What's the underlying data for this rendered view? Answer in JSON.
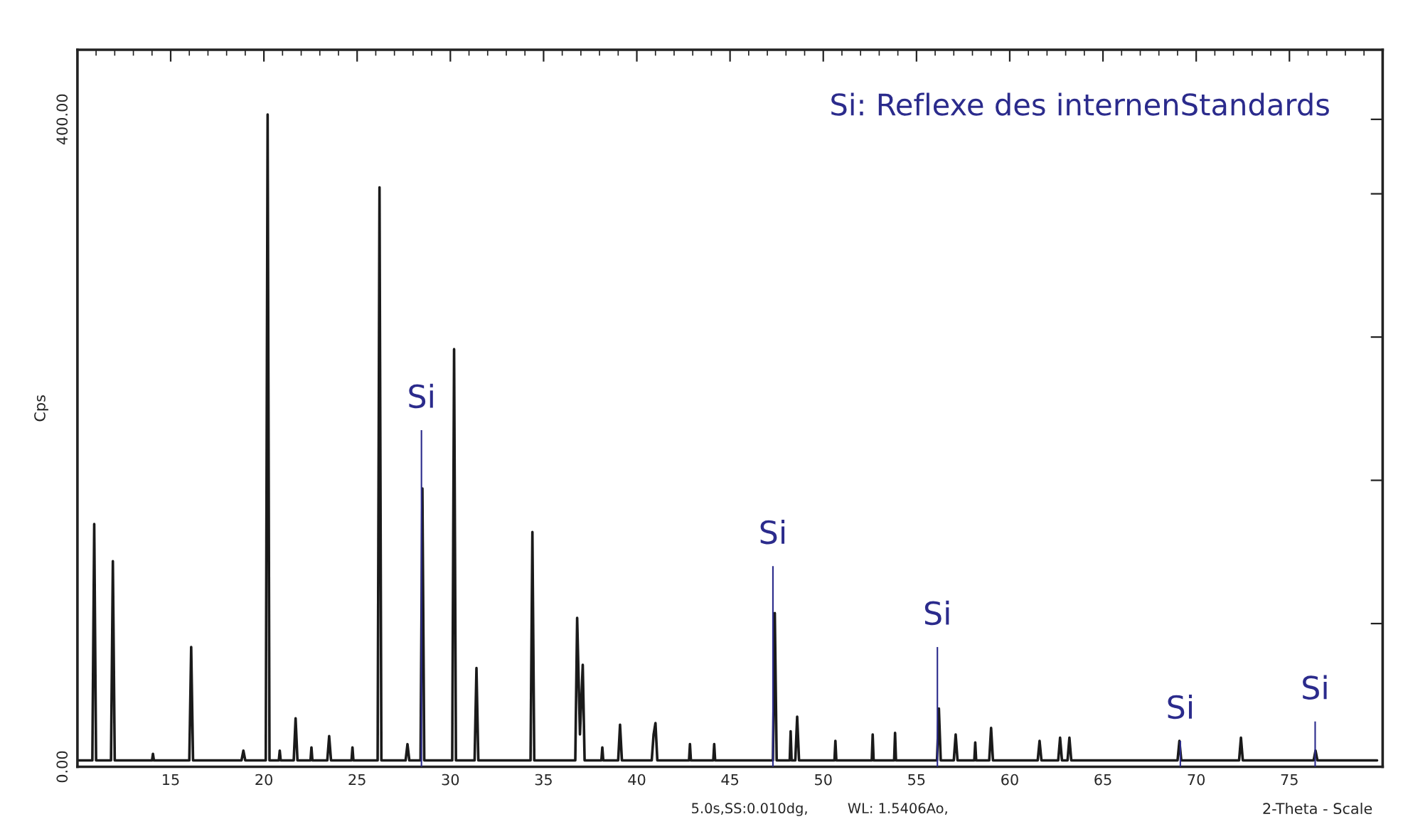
{
  "chart_data": {
    "type": "line",
    "ylabel": "Cps",
    "xlabel": "2-Theta - Scale",
    "annotations": [
      "Si: Reflexe des internenStandards",
      "5.0s,SS:0.010dg,",
      "WL: 1.5406Ao,",
      {
        "text": "Si",
        "x": 28.45,
        "y": 208
      },
      {
        "text": "Si",
        "x": 47.3,
        "y": 124
      },
      {
        "text": "Si",
        "x": 56.12,
        "y": 74
      },
      {
        "text": "Si",
        "x": 69.15,
        "y": 16
      },
      {
        "text": "Si",
        "x": 76.38,
        "y": 28
      }
    ],
    "xlim": [
      10,
      80
    ],
    "ylim": [
      0,
      443
    ],
    "xticks": [
      15,
      20,
      25,
      30,
      35,
      40,
      45,
      50,
      55,
      60,
      65,
      70,
      75
    ],
    "yticks": [
      {
        "value": 0,
        "label": "0.00"
      },
      {
        "value": 88.5,
        "label": null
      },
      {
        "value": 177,
        "label": null
      },
      {
        "value": 265.5,
        "label": null
      },
      {
        "value": 354,
        "label": null
      },
      {
        "value": 400,
        "label": "400.00"
      }
    ],
    "grid": false,
    "legend": false,
    "series": [
      {
        "color": "#1a1a1a",
        "x": [
          10.0,
          10.8,
          10.9,
          11.0,
          11.8,
          11.9,
          12.0,
          14.0,
          14.05,
          14.1,
          16.0,
          16.1,
          16.2,
          18.8,
          18.9,
          19.0,
          20.1,
          20.2,
          20.3,
          20.8,
          20.85,
          20.9,
          21.6,
          21.7,
          21.8,
          22.5,
          22.55,
          22.6,
          23.4,
          23.5,
          23.6,
          24.7,
          24.75,
          24.8,
          26.1,
          26.2,
          26.3,
          27.6,
          27.7,
          27.8,
          28.4,
          28.5,
          28.6,
          30.1,
          30.2,
          30.3,
          31.3,
          31.4,
          31.5,
          34.3,
          34.4,
          34.5,
          36.7,
          36.8,
          36.95,
          37.1,
          37.2,
          38.1,
          38.15,
          38.2,
          39.0,
          39.1,
          39.2,
          40.8,
          40.9,
          41.0,
          41.1,
          42.8,
          42.85,
          42.9,
          44.1,
          44.15,
          44.2,
          47.3,
          47.4,
          47.5,
          48.2,
          48.25,
          48.3,
          48.5,
          48.6,
          48.7,
          50.6,
          50.65,
          50.7,
          52.6,
          52.65,
          52.7,
          53.8,
          53.85,
          53.9,
          56.1,
          56.2,
          56.3,
          57.0,
          57.1,
          57.2,
          58.1,
          58.15,
          58.2,
          58.9,
          59.0,
          59.1,
          61.5,
          61.6,
          61.7,
          62.6,
          62.7,
          62.8,
          63.1,
          63.2,
          63.3,
          69.0,
          69.1,
          69.2,
          72.3,
          72.4,
          72.5,
          76.3,
          76.4,
          76.5,
          79.7
        ],
        "values": [
          4,
          4,
          150,
          4,
          4,
          127,
          4,
          4,
          8,
          4,
          4,
          74,
          4,
          4,
          10,
          4,
          4,
          403,
          4,
          4,
          10,
          4,
          4,
          30,
          4,
          4,
          12,
          4,
          4,
          19,
          4,
          4,
          12,
          4,
          4,
          358,
          4,
          4,
          14,
          4,
          4,
          172,
          4,
          4,
          258,
          4,
          4,
          61,
          4,
          4,
          145,
          4,
          4,
          92,
          20,
          63,
          4,
          4,
          12,
          4,
          4,
          26,
          4,
          4,
          20,
          27,
          4,
          4,
          14,
          4,
          4,
          14,
          4,
          4,
          95,
          4,
          4,
          22,
          4,
          4,
          31,
          4,
          4,
          16,
          4,
          4,
          20,
          4,
          4,
          21,
          4,
          4,
          36,
          4,
          4,
          20,
          4,
          4,
          15,
          4,
          4,
          24,
          4,
          4,
          16,
          4,
          4,
          18,
          4,
          4,
          18,
          4,
          4,
          16,
          4,
          4,
          18,
          4,
          4,
          10,
          4,
          4
        ]
      },
      {
        "type": "bar",
        "color": "#2b2b8c",
        "x": [
          28.45,
          47.3,
          56.12,
          69.15,
          76.38
        ],
        "values": [
          208,
          124,
          74,
          16,
          28
        ]
      }
    ]
  }
}
